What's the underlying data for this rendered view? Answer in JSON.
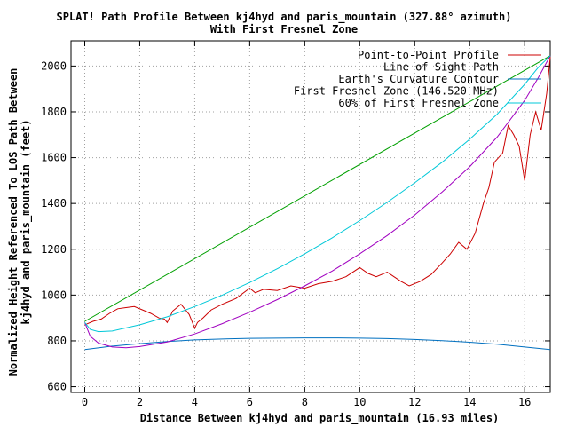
{
  "chart_data": {
    "type": "line",
    "title": "SPLAT! Path Profile Between kj4hyd and paris_mountain (327.88° azimuth)",
    "subtitle": "With First Fresnel Zone",
    "xlabel": "Distance Between kj4hyd and paris_mountain (16.93 miles)",
    "ylabel_line1": "Normalized Height Referenced To LOS Path Between",
    "ylabel_line2": "kj4hyd and paris_mountain (feet)",
    "xlim": [
      -0.5,
      16.93
    ],
    "ylim": [
      575,
      2110
    ],
    "x_ticks": [
      "0",
      "2",
      "4",
      "6",
      "8",
      "10",
      "12",
      "14",
      "16"
    ],
    "x_tick_values": [
      0,
      2,
      4,
      6,
      8,
      10,
      12,
      14,
      16
    ],
    "y_ticks": [
      "600",
      "800",
      "1000",
      "1200",
      "1400",
      "1600",
      "1800",
      "2000"
    ],
    "y_tick_values": [
      600,
      800,
      1000,
      1200,
      1400,
      1600,
      1800,
      2000
    ],
    "grid": true,
    "legend_position": "top-right",
    "series": [
      {
        "name": "Point-to-Point Profile",
        "color": "#cc0000",
        "x": [
          0,
          0.3,
          0.6,
          0.9,
          1.2,
          1.5,
          1.8,
          2.1,
          2.4,
          2.7,
          2.9,
          3.0,
          3.2,
          3.5,
          3.8,
          4.0,
          4.1,
          4.3,
          4.6,
          5.0,
          5.5,
          6.0,
          6.2,
          6.5,
          7.0,
          7.5,
          8.0,
          8.5,
          9.0,
          9.5,
          10.0,
          10.3,
          10.6,
          11.0,
          11.5,
          11.8,
          12.2,
          12.6,
          13.0,
          13.3,
          13.6,
          13.9,
          14.2,
          14.5,
          14.7,
          14.9,
          15.2,
          15.4,
          15.6,
          15.8,
          16.0,
          16.2,
          16.4,
          16.6,
          16.8,
          16.93
        ],
        "y": [
          870,
          885,
          895,
          920,
          940,
          945,
          950,
          935,
          920,
          900,
          895,
          880,
          930,
          960,
          915,
          855,
          880,
          900,
          935,
          960,
          985,
          1030,
          1010,
          1025,
          1020,
          1040,
          1030,
          1050,
          1060,
          1080,
          1120,
          1095,
          1080,
          1100,
          1060,
          1040,
          1060,
          1090,
          1140,
          1180,
          1230,
          1200,
          1270,
          1400,
          1470,
          1580,
          1620,
          1740,
          1700,
          1650,
          1500,
          1700,
          1800,
          1720,
          1880,
          2040
        ]
      },
      {
        "name": "Line of Sight Path",
        "color": "#00a000",
        "x": [
          0,
          16.93
        ],
        "y": [
          885,
          2045
        ]
      },
      {
        "name": "Earth's Curvature Contour",
        "color": "#0070c0",
        "x": [
          0,
          1,
          2,
          3,
          4,
          5,
          6,
          7,
          8,
          9,
          10,
          11,
          12,
          13,
          14,
          15,
          16,
          16.93
        ],
        "y": [
          762,
          777,
          788,
          797,
          804,
          808,
          811,
          812,
          813,
          813,
          812,
          810,
          806,
          801,
          794,
          785,
          773,
          762
        ]
      },
      {
        "name": "First Fresnel Zone (146.520 MHz)",
        "color": "#a000c0",
        "x": [
          0,
          0.2,
          0.5,
          1,
          1.5,
          2,
          3,
          4,
          5,
          6,
          7,
          8,
          9,
          10,
          11,
          12,
          13,
          14,
          15,
          16,
          16.5,
          16.93
        ],
        "y": [
          880,
          820,
          790,
          773,
          770,
          775,
          795,
          830,
          875,
          925,
          980,
          1040,
          1105,
          1180,
          1260,
          1350,
          1450,
          1560,
          1690,
          1850,
          1950,
          2045
        ]
      },
      {
        "name": "60% of First Fresnel Zone",
        "color": "#00c8d8",
        "x": [
          0,
          0.2,
          0.5,
          1,
          2,
          3,
          4,
          5,
          6,
          7,
          8,
          9,
          10,
          11,
          12,
          13,
          14,
          15,
          16,
          16.5,
          16.93
        ],
        "y": [
          880,
          850,
          840,
          843,
          870,
          905,
          950,
          1000,
          1055,
          1115,
          1180,
          1250,
          1325,
          1405,
          1490,
          1580,
          1680,
          1790,
          1920,
          1995,
          2045
        ]
      }
    ]
  }
}
